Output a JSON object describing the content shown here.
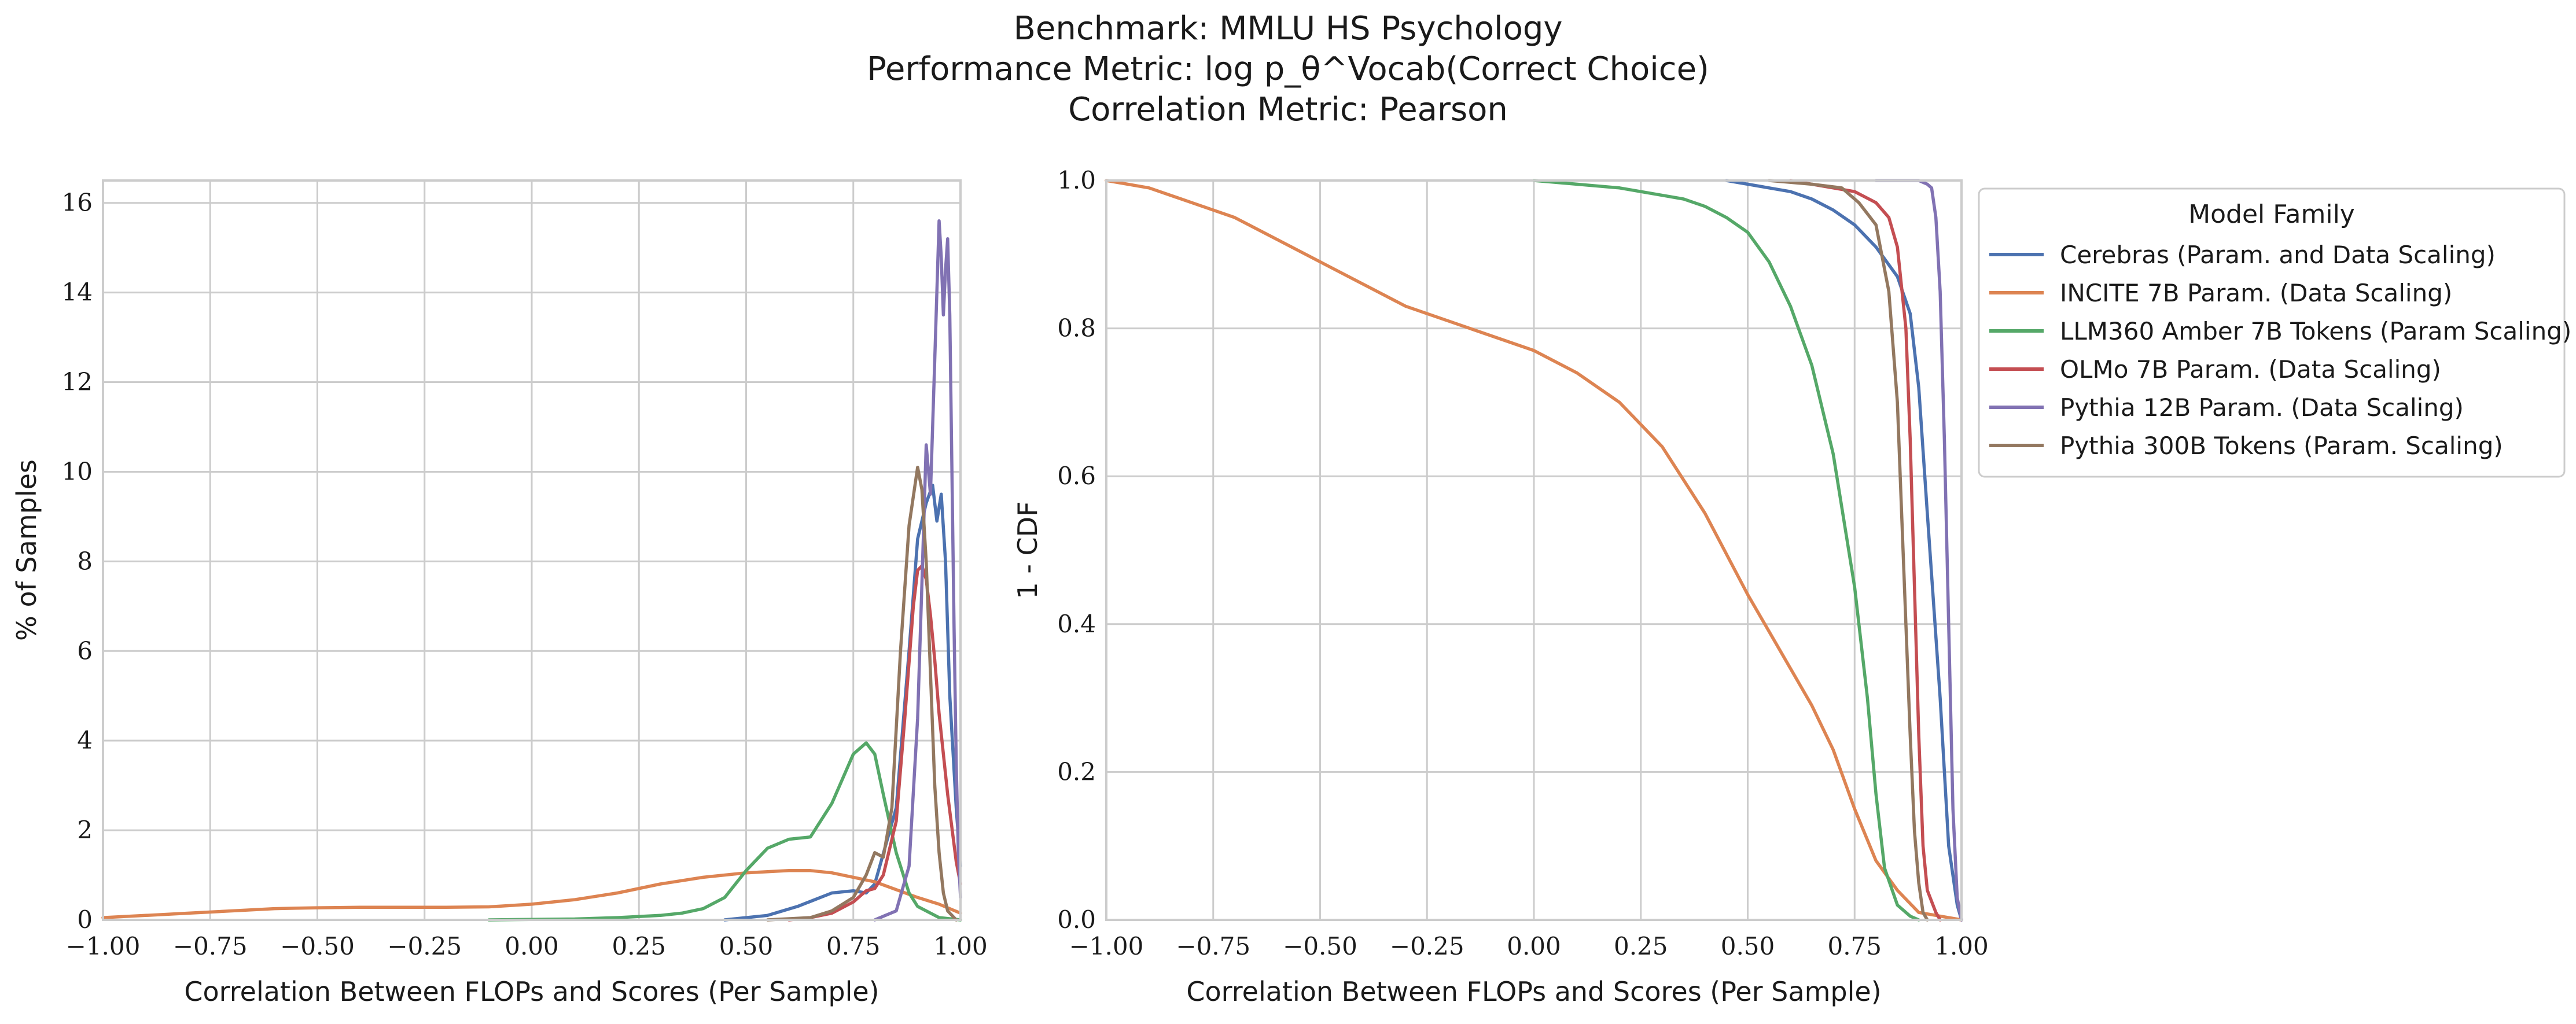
{
  "figure": {
    "title_lines": [
      "Benchmark: MMLU HS Psychology",
      "Performance Metric: log p_θ^Vocab(Correct Choice)",
      "Correlation Metric: Pearson"
    ],
    "legend_title": "Model Family",
    "colors": {
      "Cerebras": "#4c72b0",
      "INCITE": "#dd8452",
      "LLM360": "#55a868",
      "OLMo": "#c44e52",
      "Pythia12B": "#8172b3",
      "Pythia300B": "#937860"
    }
  },
  "chart_data": [
    {
      "type": "line",
      "subtype": "kde",
      "xlabel": "Correlation Between FLOPs and Scores (Per Sample)",
      "ylabel": "% of Samples",
      "xlim": [
        -1.0,
        1.0
      ],
      "ylim": [
        0,
        16.5
      ],
      "xticks": [
        "−1.00",
        "−0.75",
        "−0.50",
        "−0.25",
        "0.00",
        "0.25",
        "0.50",
        "0.75",
        "1.00"
      ],
      "yticks": [
        "0",
        "2",
        "4",
        "6",
        "8",
        "10",
        "12",
        "14",
        "16"
      ],
      "grid": true,
      "series": [
        {
          "name": "Cerebras (Param. and Data Scaling)",
          "x": [
            0.45,
            0.55,
            0.62,
            0.7,
            0.75,
            0.78,
            0.8,
            0.85,
            0.88,
            0.9,
            0.92,
            0.935,
            0.945,
            0.955,
            0.965,
            0.975,
            0.99,
            1.0
          ],
          "y": [
            0,
            0.1,
            0.3,
            0.6,
            0.65,
            0.6,
            0.8,
            2.5,
            6,
            8.5,
            9.3,
            9.7,
            8.9,
            9.5,
            8,
            5,
            2.5,
            1.2
          ]
        },
        {
          "name": "INCITE 7B Param. (Data Scaling)",
          "x": [
            -1.0,
            -0.9,
            -0.8,
            -0.7,
            -0.6,
            -0.5,
            -0.4,
            -0.3,
            -0.2,
            -0.1,
            0.0,
            0.1,
            0.2,
            0.3,
            0.4,
            0.5,
            0.6,
            0.65,
            0.7,
            0.8,
            0.9,
            0.95,
            1.0
          ],
          "y": [
            0.05,
            0.1,
            0.15,
            0.2,
            0.25,
            0.27,
            0.28,
            0.28,
            0.28,
            0.29,
            0.35,
            0.45,
            0.6,
            0.8,
            0.95,
            1.05,
            1.1,
            1.1,
            1.05,
            0.85,
            0.5,
            0.35,
            0.15
          ]
        },
        {
          "name": "LLM360 Amber 7B Tokens (Param Scaling)",
          "x": [
            -0.1,
            0.0,
            0.1,
            0.2,
            0.3,
            0.35,
            0.4,
            0.45,
            0.5,
            0.55,
            0.6,
            0.65,
            0.7,
            0.75,
            0.78,
            0.8,
            0.82,
            0.85,
            0.88,
            0.9,
            0.95,
            1.0
          ],
          "y": [
            0,
            0.01,
            0.02,
            0.05,
            0.1,
            0.15,
            0.25,
            0.5,
            1.1,
            1.6,
            1.8,
            1.85,
            2.6,
            3.7,
            3.95,
            3.7,
            2.8,
            1.5,
            0.6,
            0.3,
            0.05,
            0
          ]
        },
        {
          "name": "OLMo 7B Param. (Data Scaling)",
          "x": [
            0.6,
            0.65,
            0.7,
            0.75,
            0.78,
            0.8,
            0.82,
            0.85,
            0.87,
            0.89,
            0.9,
            0.91,
            0.92,
            0.93,
            0.94,
            0.95,
            0.97,
            0.99,
            1.0
          ],
          "y": [
            0,
            0.05,
            0.15,
            0.4,
            0.65,
            0.7,
            1.0,
            2.2,
            4.5,
            7.0,
            7.8,
            7.9,
            7.6,
            6.8,
            5.8,
            4.6,
            2.8,
            1.3,
            0.8
          ]
        },
        {
          "name": "Pythia 12B Param. (Data Scaling)",
          "x": [
            0.8,
            0.85,
            0.88,
            0.9,
            0.91,
            0.92,
            0.93,
            0.94,
            0.95,
            0.955,
            0.96,
            0.965,
            0.97,
            0.975,
            0.98,
            0.985,
            0.99,
            0.995,
            1.0
          ],
          "y": [
            0,
            0.2,
            1.2,
            4.5,
            7.5,
            10.6,
            9.5,
            12.5,
            15.6,
            14.8,
            13.5,
            14.5,
            15.2,
            13.5,
            10,
            6.5,
            3.5,
            1.5,
            0.5
          ]
        },
        {
          "name": "Pythia 300B Tokens (Param. Scaling)",
          "x": [
            0.55,
            0.65,
            0.7,
            0.75,
            0.78,
            0.8,
            0.82,
            0.84,
            0.86,
            0.88,
            0.9,
            0.91,
            0.92,
            0.93,
            0.94,
            0.95,
            0.96,
            0.97,
            0.99
          ],
          "y": [
            0,
            0.05,
            0.2,
            0.5,
            1.0,
            1.5,
            1.4,
            2.5,
            6.0,
            8.8,
            10.1,
            9.6,
            8.0,
            5.5,
            3.0,
            1.5,
            0.6,
            0.2,
            0
          ]
        }
      ]
    },
    {
      "type": "line",
      "subtype": "survival",
      "xlabel": "Correlation Between FLOPs and Scores (Per Sample)",
      "ylabel": "1 - CDF",
      "xlim": [
        -1.0,
        1.0
      ],
      "ylim": [
        0.0,
        1.0
      ],
      "xticks": [
        "−1.00",
        "−0.75",
        "−0.50",
        "−0.25",
        "0.00",
        "0.25",
        "0.50",
        "0.75",
        "1.00"
      ],
      "yticks": [
        "0.0",
        "0.2",
        "0.4",
        "0.6",
        "0.8",
        "1.0"
      ],
      "grid": true,
      "legend": "outside-right",
      "series": [
        {
          "name": "Cerebras (Param. and Data Scaling)",
          "x": [
            0.45,
            0.55,
            0.6,
            0.65,
            0.7,
            0.75,
            0.8,
            0.85,
            0.88,
            0.9,
            0.92,
            0.95,
            0.97,
            0.99,
            1.0
          ],
          "y": [
            1.0,
            0.99,
            0.985,
            0.975,
            0.96,
            0.94,
            0.91,
            0.87,
            0.82,
            0.72,
            0.55,
            0.3,
            0.1,
            0.02,
            0.0
          ]
        },
        {
          "name": "INCITE 7B Param. (Data Scaling)",
          "x": [
            -1.0,
            -0.9,
            -0.8,
            -0.7,
            -0.6,
            -0.5,
            -0.4,
            -0.3,
            -0.2,
            -0.1,
            0.0,
            0.1,
            0.2,
            0.3,
            0.4,
            0.5,
            0.6,
            0.65,
            0.7,
            0.75,
            0.8,
            0.85,
            0.9,
            0.95,
            1.0
          ],
          "y": [
            1.0,
            0.99,
            0.97,
            0.95,
            0.92,
            0.89,
            0.86,
            0.83,
            0.81,
            0.79,
            0.77,
            0.74,
            0.7,
            0.64,
            0.55,
            0.44,
            0.34,
            0.29,
            0.23,
            0.15,
            0.08,
            0.04,
            0.01,
            0.005,
            0.0
          ]
        },
        {
          "name": "LLM360 Amber 7B Tokens (Param Scaling)",
          "x": [
            0.0,
            0.1,
            0.2,
            0.25,
            0.3,
            0.35,
            0.4,
            0.45,
            0.5,
            0.55,
            0.6,
            0.65,
            0.7,
            0.75,
            0.78,
            0.8,
            0.82,
            0.85,
            0.88,
            0.9
          ],
          "y": [
            1.0,
            0.995,
            0.99,
            0.985,
            0.98,
            0.975,
            0.965,
            0.95,
            0.93,
            0.89,
            0.83,
            0.75,
            0.63,
            0.45,
            0.3,
            0.17,
            0.07,
            0.02,
            0.005,
            0.0
          ]
        },
        {
          "name": "OLMo 7B Param. (Data Scaling)",
          "x": [
            0.6,
            0.65,
            0.7,
            0.75,
            0.8,
            0.83,
            0.85,
            0.87,
            0.88,
            0.89,
            0.9,
            0.91,
            0.92,
            0.94,
            0.95
          ],
          "y": [
            1.0,
            0.995,
            0.99,
            0.985,
            0.97,
            0.95,
            0.91,
            0.8,
            0.65,
            0.45,
            0.25,
            0.1,
            0.04,
            0.01,
            0.0
          ]
        },
        {
          "name": "Pythia 12B Param. (Data Scaling)",
          "x": [
            0.8,
            0.9,
            0.92,
            0.93,
            0.94,
            0.95,
            0.96,
            0.97,
            0.98,
            0.99,
            1.0
          ],
          "y": [
            1.0,
            1.0,
            0.995,
            0.99,
            0.95,
            0.85,
            0.65,
            0.4,
            0.15,
            0.03,
            0.0
          ]
        },
        {
          "name": "Pythia 300B Tokens (Param. Scaling)",
          "x": [
            0.55,
            0.65,
            0.72,
            0.76,
            0.8,
            0.83,
            0.85,
            0.86,
            0.87,
            0.88,
            0.89,
            0.9,
            0.91,
            0.92
          ],
          "y": [
            1.0,
            0.995,
            0.99,
            0.97,
            0.94,
            0.85,
            0.7,
            0.55,
            0.4,
            0.25,
            0.12,
            0.05,
            0.01,
            0.0
          ]
        }
      ]
    }
  ]
}
